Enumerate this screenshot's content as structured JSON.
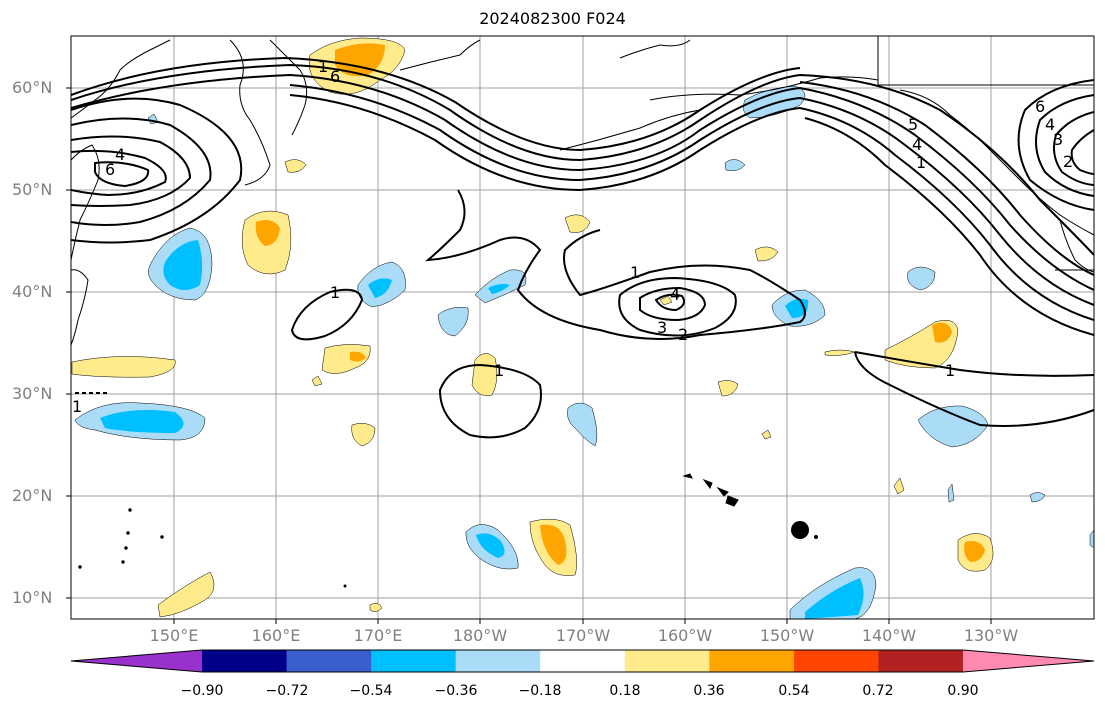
{
  "title": "2024082300 F024",
  "lat_labels": [
    "60°N",
    "50°N",
    "40°N",
    "30°N",
    "20°N",
    "10°N"
  ],
  "lon_labels": [
    "150°E",
    "160°E",
    "170°E",
    "180°W",
    "170°W",
    "160°W",
    "150°W",
    "140°W",
    "130°W"
  ],
  "colorbar": {
    "ticks": [
      "−0.90",
      "−0.72",
      "−0.54",
      "−0.36",
      "−0.18",
      "0.18",
      "0.36",
      "0.54",
      "0.72",
      "0.90"
    ],
    "colors": [
      "#9932cc",
      "#00008b",
      "#3a5fcd",
      "#00bfff",
      "#aadcf8",
      "#ffffff",
      "#ffeb8c",
      "#ffa500",
      "#ff4500",
      "#b22222",
      "#ff8ab0"
    ]
  },
  "contour_labels": [
    "6",
    "4",
    "6",
    "5",
    "4",
    "1",
    "6",
    "4",
    "3",
    "2",
    "1",
    "4",
    "3",
    "2",
    "1",
    "1",
    "1",
    "1",
    "1"
  ],
  "marker": "storm-position-dot"
}
